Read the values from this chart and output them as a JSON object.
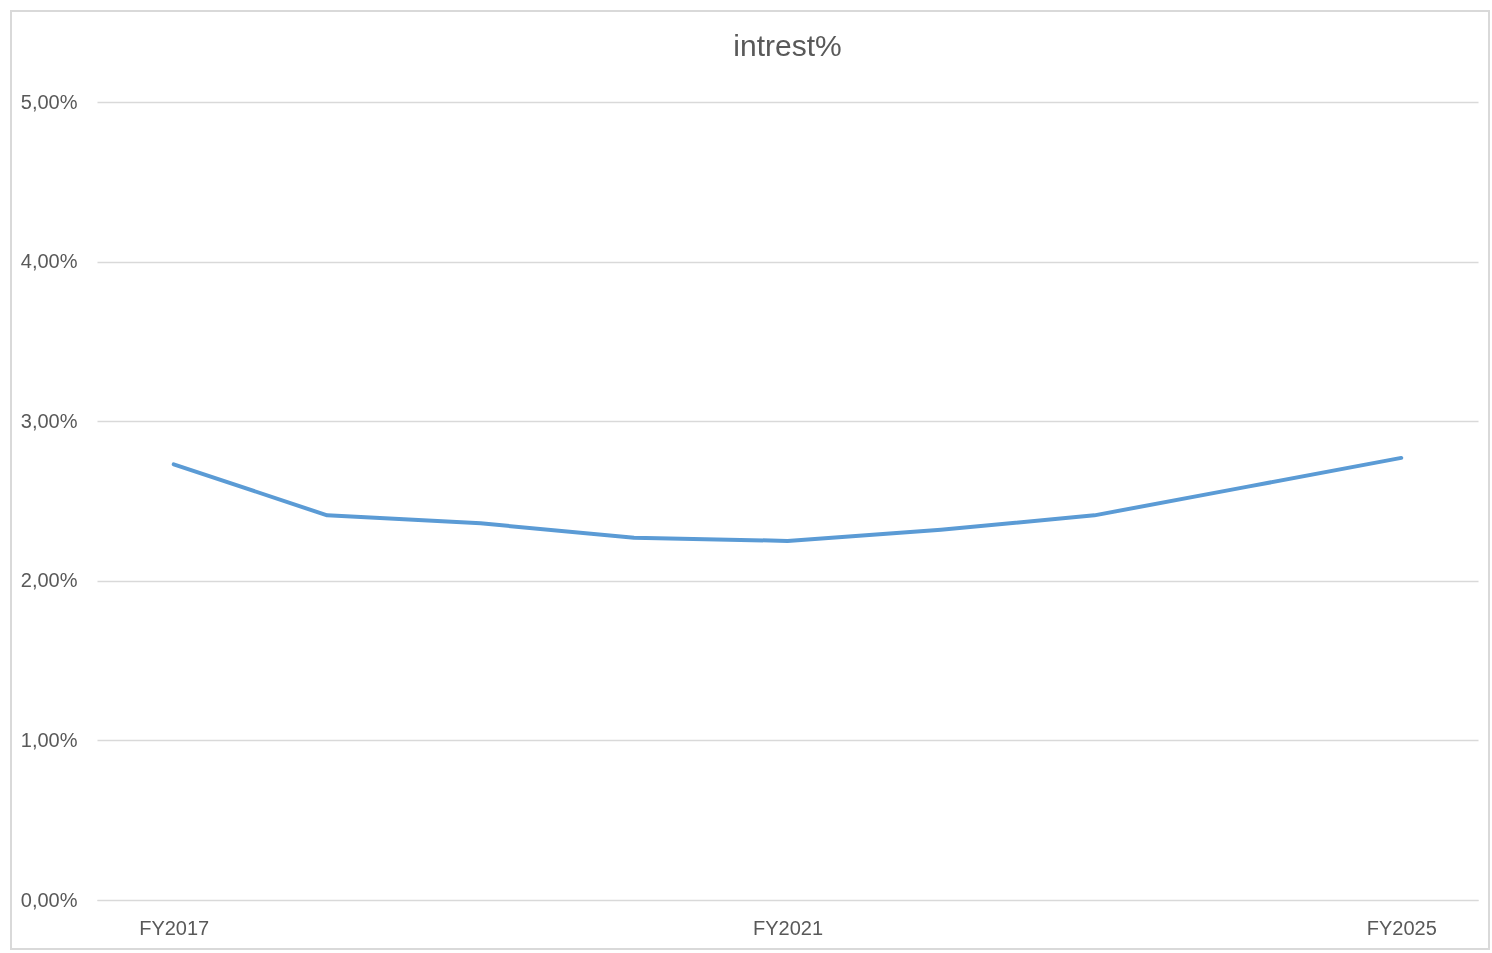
{
  "chart_data": {
    "type": "line",
    "title": "intrest%",
    "categories": [
      "FY2017",
      null,
      null,
      null,
      "FY2021",
      null,
      null,
      null,
      "FY2025"
    ],
    "series": [
      {
        "color": "#5b9bd5",
        "values": [
          2.73,
          2.41,
          2.36,
          2.27,
          2.25,
          2.32,
          2.41,
          2.59,
          2.77
        ]
      }
    ],
    "ylim": [
      0,
      5
    ],
    "yticks": [
      {
        "value": 0,
        "label": "0,00%"
      },
      {
        "value": 1,
        "label": "1,00%"
      },
      {
        "value": 2,
        "label": "2,00%"
      },
      {
        "value": 3,
        "label": "3,00%"
      },
      {
        "value": 4,
        "label": "4,00%"
      },
      {
        "value": 5,
        "label": "5,00%"
      }
    ],
    "grid": "y",
    "marker": "none",
    "line_style": "solid"
  }
}
